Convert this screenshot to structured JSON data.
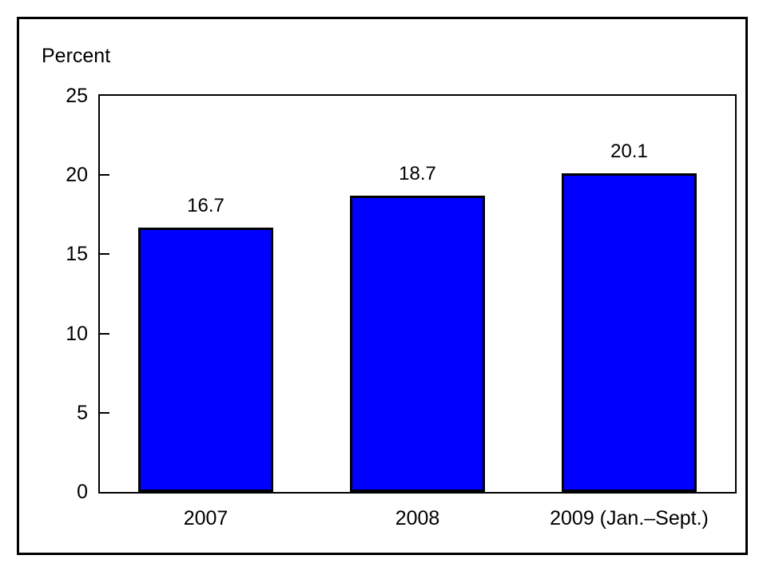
{
  "chart_data": {
    "type": "bar",
    "categories": [
      "2007",
      "2008",
      "2009 (Jan.–Sept.)"
    ],
    "values": [
      16.7,
      18.7,
      20.1
    ],
    "value_labels": [
      "16.7",
      "18.7",
      "20.1"
    ],
    "title": "",
    "xlabel": "",
    "ylabel": "Percent",
    "ylim": [
      0,
      25
    ],
    "yticks": [
      0,
      5,
      10,
      15,
      20,
      25
    ],
    "grid": false,
    "legend": null,
    "bar_color": "#0000ff",
    "bar_border_color": "#000000",
    "frame_color": "#000000",
    "background_color": "#ffffff"
  }
}
